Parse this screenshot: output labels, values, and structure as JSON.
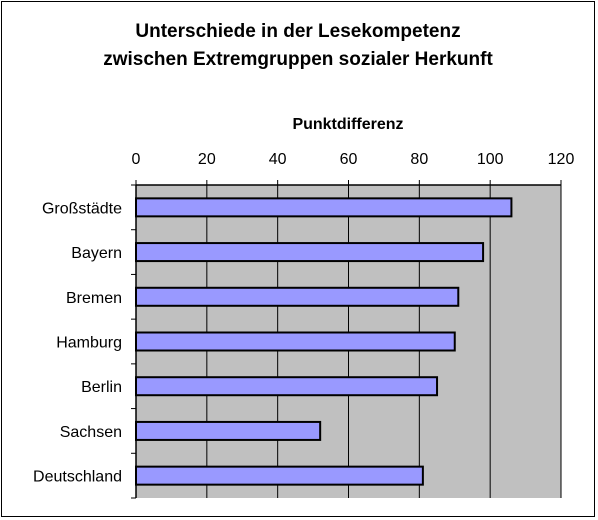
{
  "chart_data": {
    "type": "bar",
    "orientation": "horizontal",
    "title_lines": [
      "Unterschiede in der Lesekompetenz",
      "zwischen Extremgruppen sozialer Herkunft"
    ],
    "xlabel": "Punktdifferenz",
    "ylabel": "",
    "xlim": [
      0,
      120
    ],
    "ticks": [
      0,
      20,
      40,
      60,
      80,
      100,
      120
    ],
    "grid": "vertical",
    "x_axis_position": "top",
    "categories": [
      "Großstädte",
      "Bayern",
      "Bremen",
      "Hamburg",
      "Berlin",
      "Sachsen",
      "Deutschland"
    ],
    "values": [
      106,
      98,
      91,
      90,
      85,
      52,
      81
    ],
    "colors": {
      "bar_fill": "#9999ff",
      "bar_stroke": "#000000",
      "plot_background": "#c0c0c0",
      "gridline": "#000000"
    }
  }
}
